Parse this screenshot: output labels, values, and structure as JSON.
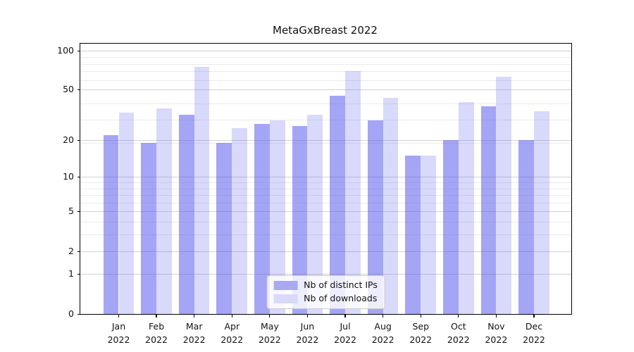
{
  "title": "MetaGxBreast 2022",
  "chart_data": {
    "type": "bar",
    "title": "MetaGxBreast 2022",
    "categories": [
      "Jan 2022",
      "Feb 2022",
      "Mar 2022",
      "Apr 2022",
      "May 2022",
      "Jun 2022",
      "Jul 2022",
      "Aug 2022",
      "Sep 2022",
      "Oct 2022",
      "Nov 2022",
      "Dec 2022"
    ],
    "months": [
      "Jan",
      "Feb",
      "Mar",
      "Apr",
      "May",
      "Jun",
      "Jul",
      "Aug",
      "Sep",
      "Oct",
      "Nov",
      "Dec"
    ],
    "year_label": "2022",
    "series": [
      {
        "name": "Nb of distinct IPs",
        "base_color": "#5252eb",
        "alpha": 0.52,
        "swatch_color": "#a9a9f1",
        "values": [
          22,
          19,
          32,
          19,
          27,
          26,
          45,
          29,
          15,
          20,
          37,
          20
        ]
      },
      {
        "name": "Nb of downloads",
        "base_color": "#5252eb",
        "alpha": 0.22,
        "swatch_color": "#d9d9f8",
        "values": [
          33,
          36,
          75,
          25,
          29,
          32,
          70,
          43,
          15,
          40,
          63,
          34
        ]
      }
    ],
    "xlabel": "",
    "ylabel": "",
    "y_scale": "log10(1+y)",
    "y_ticks": [
      0,
      1,
      2,
      5,
      10,
      20,
      50,
      100
    ],
    "y_minor_ticks": [
      3,
      4,
      6,
      7,
      8,
      9,
      19,
      29,
      39,
      59,
      69,
      79,
      89
    ],
    "ylim": [
      0,
      115
    ],
    "grid": true,
    "legend_position": "lower center",
    "colors": {
      "figure_bg": "#ffffff",
      "spine": "#000000",
      "grid_major": "#d2d2d2",
      "grid_minor": "#ebebeb",
      "tick_text": "#111111",
      "legend_border": "#cccccc"
    }
  }
}
